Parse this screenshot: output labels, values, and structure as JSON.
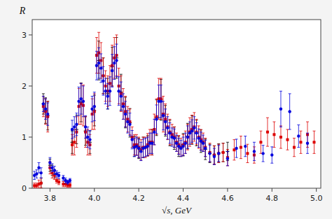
{
  "chart_data": {
    "type": "scatter",
    "xlabel": "√s, GeV",
    "ylabel": "R",
    "xlim": [
      3.72,
      5.02
    ],
    "ylim": [
      0,
      3.3
    ],
    "xticks": [
      3.8,
      {
        "value": 4.0,
        "label": "4.0"
      },
      4.2,
      4.4,
      4.6,
      4.8,
      {
        "value": 5.0,
        "label": "5.0"
      }
    ],
    "yticks": [
      0,
      1,
      2,
      3
    ],
    "grid": false,
    "series": [
      {
        "color": "#000000",
        "marker": "plus",
        "x": [
          3.76,
          3.77,
          3.78,
          3.79,
          3.8,
          3.81,
          3.82,
          3.9,
          3.92,
          3.94,
          3.96,
          3.98,
          4.0,
          4.02,
          4.04,
          4.06,
          4.08,
          4.1,
          4.12,
          4.14,
          4.16,
          4.18,
          4.2,
          4.22,
          4.24,
          4.26,
          4.28,
          4.3,
          4.32,
          4.34,
          4.36,
          4.38,
          4.4,
          4.42,
          4.44,
          4.46,
          4.48,
          4.5,
          4.52,
          4.54,
          4.56,
          4.58,
          4.6
        ],
        "values": [
          0.1,
          1.65,
          1.52,
          1.42,
          0.45,
          0.35,
          0.28,
          0.9,
          1.15,
          1.68,
          1.12,
          0.9,
          1.52,
          2.5,
          2.2,
          1.85,
          2.38,
          2.55,
          1.88,
          1.48,
          1.28,
          0.82,
          0.78,
          0.8,
          0.83,
          0.9,
          1.38,
          1.73,
          1.32,
          1.08,
          0.98,
          0.82,
          0.85,
          1.02,
          1.14,
          1.08,
          0.92,
          0.76,
          0.68,
          0.65,
          0.69,
          0.7,
          0.72
        ],
        "errors": [
          0.1,
          0.2,
          0.25,
          0.28,
          0.12,
          0.1,
          0.08,
          0.22,
          0.28,
          0.38,
          0.28,
          0.22,
          0.3,
          0.38,
          0.35,
          0.3,
          0.38,
          0.4,
          0.35,
          0.3,
          0.28,
          0.2,
          0.2,
          0.2,
          0.2,
          0.25,
          0.35,
          0.4,
          0.3,
          0.25,
          0.22,
          0.2,
          0.22,
          0.25,
          0.28,
          0.25,
          0.22,
          0.2,
          0.18,
          0.18,
          0.18,
          0.18,
          0.18
        ]
      },
      {
        "color": "#dd0000",
        "marker": "square",
        "x": [
          3.73,
          3.74,
          3.75,
          3.76,
          3.77,
          3.78,
          3.79,
          3.8,
          3.81,
          3.82,
          3.83,
          3.84,
          3.86,
          3.87,
          3.88,
          3.89,
          3.9,
          3.91,
          3.92,
          3.93,
          3.94,
          3.95,
          3.96,
          3.97,
          3.98,
          3.99,
          4.0,
          4.01,
          4.02,
          4.03,
          4.04,
          4.05,
          4.06,
          4.07,
          4.08,
          4.09,
          4.1,
          4.11,
          4.12,
          4.13,
          4.14,
          4.15,
          4.16,
          4.17,
          4.18,
          4.19,
          4.2,
          4.21,
          4.22,
          4.23,
          4.24,
          4.25,
          4.26,
          4.27,
          4.28,
          4.29,
          4.3,
          4.31,
          4.32,
          4.33,
          4.34,
          4.35,
          4.36,
          4.37,
          4.38,
          4.39,
          4.4,
          4.41,
          4.42,
          4.43,
          4.44,
          4.45,
          4.46,
          4.47,
          4.48,
          4.49,
          4.5,
          4.52,
          4.54,
          4.56,
          4.58,
          4.6,
          4.63,
          4.66,
          4.69,
          4.72,
          4.75,
          4.78,
          4.81,
          4.84,
          4.87,
          4.9,
          4.93,
          4.96,
          4.99
        ],
        "values": [
          0.05,
          0.05,
          0.08,
          0.1,
          1.6,
          1.5,
          1.4,
          0.4,
          0.3,
          0.25,
          0.15,
          0.12,
          0.08,
          0.08,
          0.06,
          0.06,
          0.85,
          0.9,
          1.1,
          1.6,
          1.65,
          1.62,
          1.1,
          0.9,
          0.85,
          1.45,
          1.5,
          2.6,
          2.65,
          2.5,
          2.2,
          2.0,
          1.9,
          2.05,
          2.4,
          2.55,
          2.6,
          2.0,
          1.85,
          1.65,
          1.5,
          1.35,
          1.3,
          1.0,
          0.85,
          0.85,
          0.8,
          0.75,
          0.8,
          0.8,
          0.85,
          0.9,
          0.9,
          1.15,
          1.4,
          1.75,
          1.75,
          1.45,
          1.35,
          1.2,
          1.1,
          1.05,
          1.0,
          0.9,
          0.85,
          0.8,
          0.85,
          0.9,
          1.0,
          1.1,
          1.15,
          1.2,
          1.1,
          1.0,
          0.95,
          0.9,
          0.8,
          0.7,
          0.65,
          0.68,
          0.7,
          0.6,
          0.75,
          0.8,
          0.68,
          0.65,
          0.9,
          1.1,
          1.05,
          1.0,
          0.95,
          0.8,
          0.9,
          1.05,
          0.9
        ],
        "errors": [
          0.05,
          0.05,
          0.08,
          0.1,
          0.2,
          0.25,
          0.3,
          0.12,
          0.1,
          0.08,
          0.05,
          0.05,
          0.05,
          0.05,
          0.04,
          0.04,
          0.2,
          0.25,
          0.3,
          0.35,
          0.4,
          0.4,
          0.3,
          0.25,
          0.2,
          0.3,
          0.35,
          0.35,
          0.4,
          0.35,
          0.35,
          0.3,
          0.3,
          0.35,
          0.4,
          0.4,
          0.4,
          0.35,
          0.35,
          0.3,
          0.3,
          0.25,
          0.25,
          0.2,
          0.2,
          0.2,
          0.2,
          0.2,
          0.2,
          0.2,
          0.22,
          0.25,
          0.25,
          0.3,
          0.35,
          0.4,
          0.4,
          0.35,
          0.3,
          0.25,
          0.25,
          0.2,
          0.2,
          0.18,
          0.18,
          0.18,
          0.2,
          0.22,
          0.25,
          0.28,
          0.28,
          0.28,
          0.25,
          0.22,
          0.2,
          0.18,
          0.18,
          0.18,
          0.18,
          0.18,
          0.18,
          0.16,
          0.2,
          0.22,
          0.18,
          0.16,
          0.22,
          0.28,
          0.25,
          0.22,
          0.2,
          0.18,
          0.22,
          0.25,
          0.22
        ]
      },
      {
        "color": "#0000dd",
        "marker": "circle",
        "x": [
          3.73,
          3.74,
          3.75,
          3.76,
          3.77,
          3.78,
          3.79,
          3.8,
          3.81,
          3.82,
          3.83,
          3.84,
          3.86,
          3.87,
          3.88,
          3.89,
          3.9,
          3.91,
          3.92,
          3.93,
          3.94,
          3.95,
          3.96,
          3.97,
          3.98,
          3.99,
          4.0,
          4.01,
          4.02,
          4.03,
          4.04,
          4.05,
          4.06,
          4.07,
          4.08,
          4.09,
          4.1,
          4.11,
          4.12,
          4.13,
          4.14,
          4.15,
          4.16,
          4.17,
          4.18,
          4.19,
          4.2,
          4.21,
          4.22,
          4.23,
          4.24,
          4.25,
          4.26,
          4.27,
          4.28,
          4.29,
          4.3,
          4.31,
          4.32,
          4.33,
          4.34,
          4.35,
          4.36,
          4.37,
          4.38,
          4.39,
          4.4,
          4.41,
          4.42,
          4.43,
          4.44,
          4.45,
          4.46,
          4.47,
          4.48,
          4.49,
          4.5,
          4.52,
          4.54,
          4.56,
          4.6,
          4.64,
          4.68,
          4.72,
          4.76,
          4.8,
          4.84,
          4.88,
          4.92,
          4.96
        ],
        "values": [
          0.25,
          0.28,
          0.4,
          0.3,
          1.65,
          1.55,
          1.45,
          0.5,
          0.4,
          0.35,
          0.28,
          0.25,
          0.2,
          0.15,
          0.12,
          0.15,
          1.15,
          1.2,
          1.25,
          1.7,
          1.75,
          1.7,
          1.2,
          1.0,
          0.95,
          1.55,
          1.6,
          2.4,
          2.45,
          2.35,
          2.1,
          1.9,
          1.8,
          1.9,
          2.3,
          2.45,
          2.5,
          1.9,
          1.8,
          1.6,
          1.45,
          1.3,
          1.25,
          0.95,
          0.8,
          0.82,
          0.78,
          0.72,
          0.78,
          0.8,
          0.82,
          0.88,
          0.88,
          1.1,
          1.35,
          1.7,
          1.7,
          1.42,
          1.3,
          1.18,
          1.08,
          1.0,
          0.98,
          0.88,
          0.82,
          0.78,
          0.82,
          0.88,
          1.0,
          1.08,
          1.12,
          1.18,
          1.08,
          0.98,
          0.92,
          0.88,
          0.78,
          0.68,
          0.62,
          0.68,
          0.58,
          0.78,
          0.82,
          0.72,
          0.68,
          0.65,
          1.55,
          1.5,
          1.02,
          0.88
        ],
        "errors": [
          0.08,
          0.08,
          0.1,
          0.1,
          0.15,
          0.2,
          0.22,
          0.1,
          0.08,
          0.08,
          0.06,
          0.06,
          0.05,
          0.05,
          0.04,
          0.04,
          0.18,
          0.2,
          0.22,
          0.28,
          0.3,
          0.3,
          0.22,
          0.2,
          0.18,
          0.25,
          0.28,
          0.28,
          0.3,
          0.28,
          0.28,
          0.25,
          0.25,
          0.28,
          0.32,
          0.32,
          0.32,
          0.28,
          0.28,
          0.25,
          0.25,
          0.22,
          0.22,
          0.18,
          0.18,
          0.18,
          0.18,
          0.18,
          0.18,
          0.18,
          0.18,
          0.2,
          0.2,
          0.25,
          0.28,
          0.32,
          0.32,
          0.28,
          0.25,
          0.22,
          0.2,
          0.18,
          0.18,
          0.16,
          0.16,
          0.16,
          0.18,
          0.2,
          0.22,
          0.22,
          0.22,
          0.22,
          0.2,
          0.18,
          0.18,
          0.16,
          0.16,
          0.16,
          0.16,
          0.16,
          0.14,
          0.18,
          0.2,
          0.18,
          0.16,
          0.16,
          0.35,
          0.35,
          0.22,
          0.2
        ]
      }
    ]
  }
}
